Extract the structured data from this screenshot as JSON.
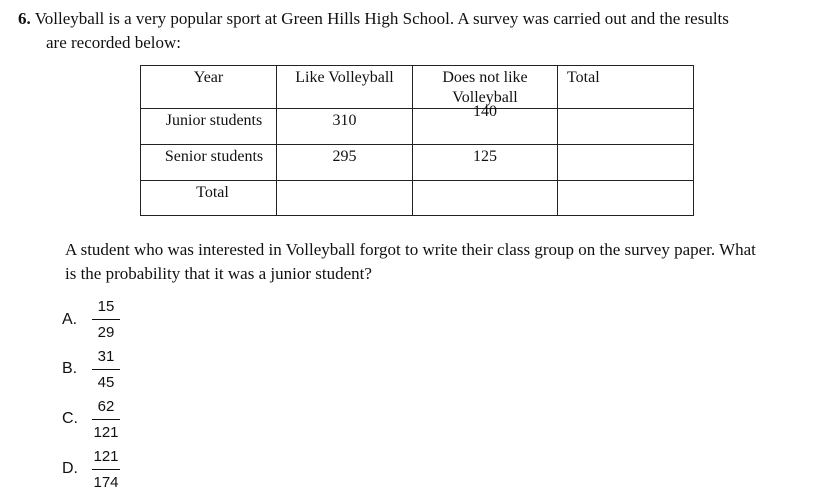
{
  "question": {
    "number": "6.",
    "line1": "Volleyball is a very popular sport at Green Hills High School. A survey was carried out and the results",
    "line2": "are recorded below:"
  },
  "table": {
    "headers": [
      "Year",
      "Like Volleyball",
      "Does not like",
      "Volleyball",
      "Total"
    ],
    "rows": [
      {
        "label": "Junior students",
        "like": "310",
        "dislike": "140",
        "total": ""
      },
      {
        "label": "Senior students",
        "like": "295",
        "dislike": "125",
        "total": ""
      },
      {
        "label": "Total",
        "like": "",
        "dislike": "",
        "total": ""
      }
    ]
  },
  "prompt": {
    "line1": "A student who was interested in Volleyball forgot to write their class group on the survey paper. What",
    "line2": "is the probability that it was a junior student?"
  },
  "options": [
    {
      "letter": "A.",
      "numerator": "15",
      "denominator": "29"
    },
    {
      "letter": "B.",
      "numerator": "31",
      "denominator": "45"
    },
    {
      "letter": "C.",
      "numerator": "62",
      "denominator": "121"
    },
    {
      "letter": "D.",
      "numerator": "121",
      "denominator": "174"
    }
  ]
}
